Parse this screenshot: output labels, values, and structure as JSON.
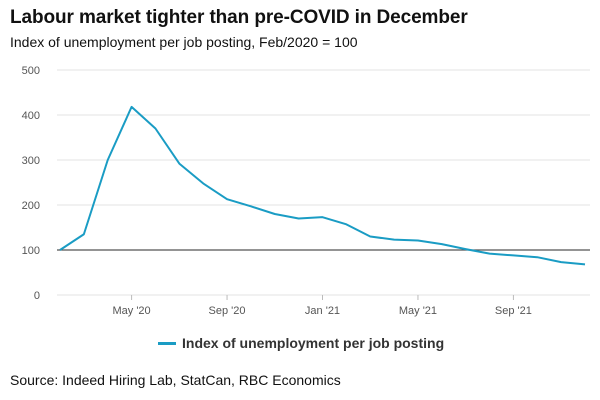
{
  "chart_data": {
    "type": "line",
    "title": "Labour market tighter than pre-COVID in December",
    "subtitle": "Index of unemployment per job posting, Feb/2020 = 100",
    "source": "Source: Indeed Hiring Lab, StatCan, RBC Economics",
    "xlabel": "",
    "ylabel": "",
    "ylim": [
      0,
      500
    ],
    "yticks": [
      0,
      100,
      200,
      300,
      400,
      500
    ],
    "reference_line": 100,
    "x": [
      "Feb 2020",
      "Mar 2020",
      "Apr 2020",
      "May 2020",
      "Jun 2020",
      "Jul 2020",
      "Aug 2020",
      "Sep 2020",
      "Oct 2020",
      "Nov 2020",
      "Dec 2020",
      "Jan 2021",
      "Feb 2021",
      "Mar 2021",
      "Apr 2021",
      "May 2021",
      "Jun 2021",
      "Jul 2021",
      "Aug 2021",
      "Sep 2021",
      "Oct 2021",
      "Nov 2021",
      "Dec 2021"
    ],
    "xtick_labels": [
      {
        "index": 3,
        "label": "May '20"
      },
      {
        "index": 7,
        "label": "Sep '20"
      },
      {
        "index": 11,
        "label": "Jan '21"
      },
      {
        "index": 15,
        "label": "May '21"
      },
      {
        "index": 19,
        "label": "Sep '21"
      }
    ],
    "series": [
      {
        "name": "Index of unemployment per job posting",
        "color": "#1a9cc4",
        "values": [
          100,
          135,
          300,
          418,
          370,
          292,
          248,
          213,
          197,
          180,
          170,
          173,
          157,
          130,
          123,
          121,
          113,
          102,
          92,
          88,
          84,
          73,
          68
        ]
      }
    ]
  }
}
